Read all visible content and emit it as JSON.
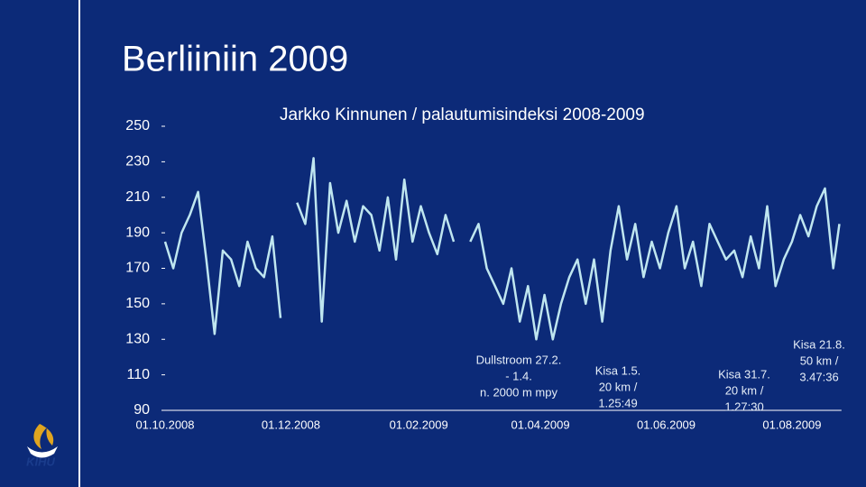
{
  "slide": {
    "title": "Berliiniin 2009",
    "logo": "KIHU"
  },
  "chart_data": {
    "type": "line",
    "title": "Jarkko Kinnunen / palautumisindeksi 2008-2009",
    "color": "#bfe6f0",
    "x": [
      "01.10.2008",
      "05.10.2008",
      "09.10.2008",
      "13.10.2008",
      "17.10.2008",
      "21.10.2008",
      "25.10.2008",
      "29.10.2008",
      "02.11.2008",
      "06.11.2008",
      "10.11.2008",
      "14.11.2008",
      "18.11.2008",
      "22.11.2008",
      "26.11.2008",
      "30.11.2008",
      "04.12.2008",
      "08.12.2008",
      "12.12.2008",
      "16.12.2008",
      "20.12.2008",
      "24.12.2008",
      "28.12.2008",
      "01.01.2009",
      "05.01.2009",
      "09.01.2009",
      "13.01.2009",
      "17.01.2009",
      "21.01.2009",
      "25.01.2009",
      "29.01.2009",
      "02.02.2009",
      "06.02.2009",
      "10.02.2009",
      "14.02.2009",
      "18.02.2009",
      "22.02.2009",
      "26.02.2009",
      "02.03.2009",
      "06.03.2009",
      "10.03.2009",
      "14.03.2009",
      "18.03.2009",
      "22.03.2009",
      "26.03.2009",
      "30.03.2009",
      "03.04.2009",
      "07.04.2009",
      "11.04.2009",
      "15.04.2009",
      "19.04.2009",
      "23.04.2009",
      "27.04.2009",
      "01.05.2009",
      "05.05.2009",
      "09.05.2009",
      "13.05.2009",
      "17.05.2009",
      "21.05.2009",
      "25.05.2009",
      "29.05.2009",
      "02.06.2009",
      "06.06.2009",
      "10.06.2009",
      "14.06.2009",
      "18.06.2009",
      "22.06.2009",
      "26.06.2009",
      "30.06.2009",
      "04.07.2009",
      "08.07.2009",
      "12.07.2009",
      "16.07.2009",
      "20.07.2009",
      "24.07.2009",
      "28.07.2009",
      "01.08.2009",
      "05.08.2009",
      "09.08.2009",
      "13.08.2009",
      "17.08.2009",
      "21.08.2009",
      "24.08.2009"
    ],
    "values": [
      185,
      170,
      190,
      200,
      213,
      175,
      133,
      180,
      175,
      160,
      185,
      170,
      165,
      188,
      142,
      null,
      207,
      195,
      232,
      140,
      218,
      190,
      208,
      185,
      205,
      200,
      180,
      210,
      175,
      220,
      185,
      205,
      190,
      178,
      200,
      185,
      null,
      185,
      195,
      170,
      160,
      150,
      170,
      140,
      160,
      130,
      155,
      130,
      150,
      165,
      175,
      150,
      175,
      140,
      180,
      205,
      175,
      195,
      165,
      185,
      170,
      190,
      205,
      170,
      185,
      160,
      195,
      185,
      175,
      180,
      165,
      188,
      170,
      205,
      160,
      175,
      185,
      200,
      188,
      205,
      215,
      170,
      195
    ],
    "xlim": [
      "01.10.2008",
      "25.08.2009"
    ],
    "xticks": [
      "01.10.2008",
      "01.12.2008",
      "01.02.2009",
      "01.04.2009",
      "01.06.2009",
      "01.08.2009"
    ],
    "ylim": [
      90,
      250
    ],
    "yticks": [
      90,
      110,
      130,
      150,
      170,
      190,
      210,
      230,
      250
    ],
    "annotations": [
      {
        "lines": [
          "Dullstroom 27.2.",
          "- 1.4.",
          "n. 2000 m mpy"
        ]
      },
      {
        "lines": [
          "Kisa  1.5.",
          "20 km /",
          "1.25:49"
        ]
      },
      {
        "lines": [
          "Kisa  31.7.",
          "20 km /",
          "1.27:30"
        ]
      },
      {
        "lines": [
          "Kisa  21.8.",
          "50 km /",
          "3.47:36"
        ]
      }
    ]
  }
}
